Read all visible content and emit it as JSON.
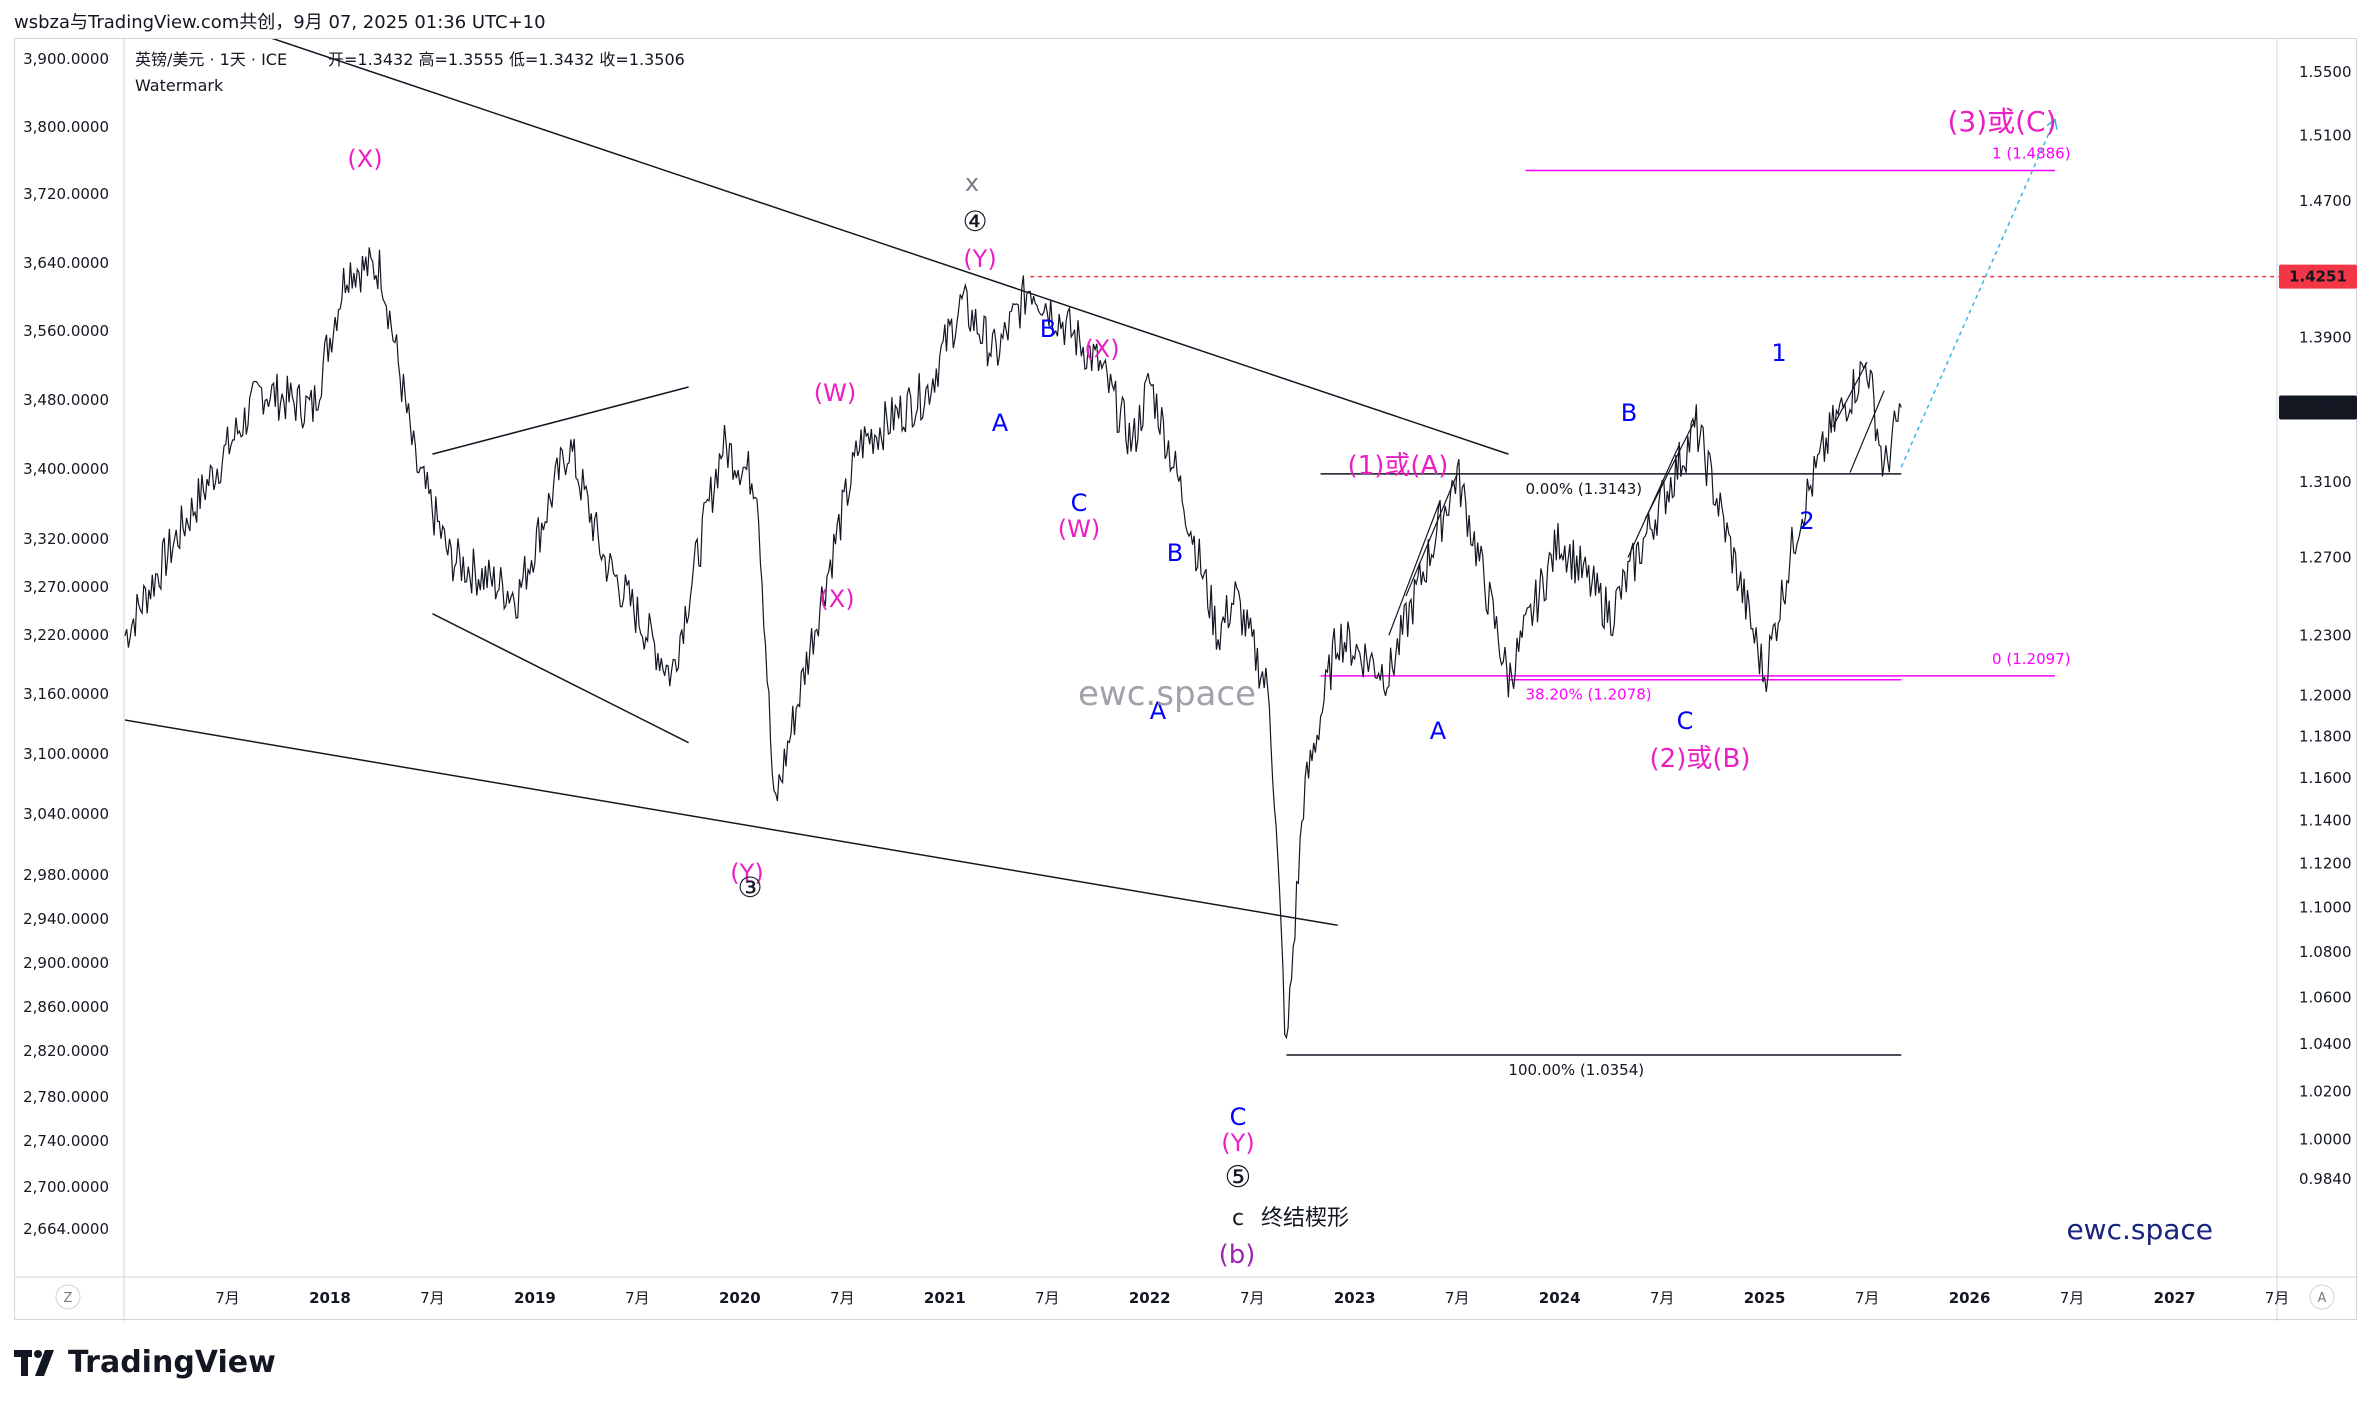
{
  "header": {
    "attribution": "wsbza与TradingView.com共创，9月 07, 2025 01:36 UTC+10"
  },
  "legend": {
    "symbol": "英镑/美元 · 1天 · ICE",
    "ohlc": "开=1.3432 高=1.3555 低=1.3432 收=1.3506",
    "watermark_label": "Watermark"
  },
  "footer": {
    "logo_text": "TradingView",
    "logo_icon": "tradingview-logo-icon",
    "z_button": "Z",
    "a_button": "A"
  },
  "chart_data": {
    "type": "line",
    "title": "",
    "series": [
      {
        "name": "英镑/美元 · 1天 · ICE",
        "color": "#131722"
      }
    ],
    "x": {
      "tick_labels": [
        "7月",
        "2018",
        "7月",
        "2019",
        "7月",
        "2020",
        "7月",
        "2021",
        "7月",
        "2022",
        "7月",
        "2023",
        "7月",
        "2024",
        "7月",
        "2025",
        "7月",
        "2026",
        "7月",
        "2027",
        "7月"
      ],
      "range": [
        "2017-01",
        "2027-12"
      ]
    },
    "left_axis": {
      "tick_labels": [
        "3,900.0000",
        "3,800.0000",
        "3,720.0000",
        "3,640.0000",
        "3,560.0000",
        "3,480.0000",
        "3,400.0000",
        "3,320.0000",
        "3,270.0000",
        "3,220.0000",
        "3,160.0000",
        "3,100.0000",
        "3,040.0000",
        "2,980.0000",
        "2,940.0000",
        "2,900.0000",
        "2,860.0000",
        "2,820.0000",
        "2,780.0000",
        "2,740.0000",
        "2,700.0000",
        "2,664.0000"
      ]
    },
    "right_axis": {
      "scale": "log",
      "range": [
        0.975,
        1.57
      ],
      "tick_labels": [
        "1.5500",
        "1.5100",
        "1.4700",
        "1.3900",
        "1.3100",
        "1.2700",
        "1.2300",
        "1.2000",
        "1.1800",
        "1.1600",
        "1.1400",
        "1.1200",
        "1.1000",
        "1.0800",
        "1.0600",
        "1.0400",
        "1.0200",
        "1.0000",
        "0.9840"
      ],
      "tick_values": [
        1.55,
        1.51,
        1.47,
        1.39,
        1.31,
        1.27,
        1.23,
        1.2,
        1.18,
        1.16,
        1.14,
        1.12,
        1.1,
        1.08,
        1.06,
        1.04,
        1.02,
        1.0,
        0.984
      ],
      "price_tags": [
        {
          "value": 1.4251,
          "label": "1.4251",
          "color": "#f23645"
        },
        {
          "value": 1.3506,
          "label": "1.3506",
          "color": "#131722"
        }
      ]
    },
    "price_path": [
      [
        "2017-01",
        1.23
      ],
      [
        "2017-04",
        1.28
      ],
      [
        "2017-09",
        1.36
      ],
      [
        "2017-12",
        1.35
      ],
      [
        "2018-02",
        1.43
      ],
      [
        "2018-04",
        1.43
      ],
      [
        "2018-06",
        1.32
      ],
      [
        "2018-08",
        1.27
      ],
      [
        "2018-12",
        1.25
      ],
      [
        "2019-03",
        1.33
      ],
      [
        "2019-05",
        1.27
      ],
      [
        "2019-09",
        1.21
      ],
      [
        "2019-12",
        1.33
      ],
      [
        "2020-02",
        1.31
      ],
      [
        "2020-03",
        1.145
      ],
      [
        "2020-05",
        1.22
      ],
      [
        "2020-08",
        1.33
      ],
      [
        "2020-12",
        1.36
      ],
      [
        "2021-02",
        1.41
      ],
      [
        "2021-04",
        1.38
      ],
      [
        "2021-06",
        1.42
      ],
      [
        "2021-10",
        1.375
      ],
      [
        "2021-12",
        1.33
      ],
      [
        "2022-01",
        1.365
      ],
      [
        "2022-03",
        1.3
      ],
      [
        "2022-05",
        1.23
      ],
      [
        "2022-06",
        1.25
      ],
      [
        "2022-08",
        1.2
      ],
      [
        "2022-09",
        1.0354
      ],
      [
        "2022-10",
        1.15
      ],
      [
        "2022-12",
        1.23
      ],
      [
        "2023-03",
        1.21
      ],
      [
        "2023-07",
        1.3143
      ],
      [
        "2023-10",
        1.2078
      ],
      [
        "2024-01",
        1.28
      ],
      [
        "2024-04",
        1.24
      ],
      [
        "2024-07",
        1.3
      ],
      [
        "2024-09",
        1.34
      ],
      [
        "2025-01",
        1.2097
      ],
      [
        "2025-03",
        1.29
      ],
      [
        "2025-05",
        1.34
      ],
      [
        "2025-07",
        1.376
      ],
      [
        "2025-08",
        1.315
      ],
      [
        "2025-09",
        1.3506
      ]
    ],
    "trendlines": [
      {
        "from": [
          "2017-06",
          1.585
        ],
        "to": [
          "2023-10",
          1.325
        ],
        "color": "#131722"
      },
      {
        "from": [
          "2017-01",
          1.188
        ],
        "to": [
          "2022-12",
          1.092
        ],
        "color": "#131722"
      },
      {
        "from": [
          "2018-07",
          1.325
        ],
        "to": [
          "2019-10",
          1.362
        ],
        "color": "#131722"
      },
      {
        "from": [
          "2018-07",
          1.241
        ],
        "to": [
          "2019-10",
          1.177
        ],
        "color": "#131722"
      }
    ],
    "levels": [
      {
        "value": 1.4886,
        "label": "1 (1.4886)",
        "color": "#ff00ff",
        "from": "2023-11",
        "to": "2026-06"
      },
      {
        "value": 1.2097,
        "label": "0 (1.2097)",
        "color": "#ff00ff",
        "from": "2022-11",
        "to": "2026-06"
      },
      {
        "value": 1.3143,
        "label": "0.00% (1.3143)",
        "color": "#131722",
        "from": "2022-11",
        "to": "2025-09"
      },
      {
        "value": 1.2078,
        "label": "38.20% (1.2078)",
        "color": "#ff00ff",
        "from": "2023-10",
        "to": "2025-09"
      },
      {
        "value": 1.0354,
        "label": "100.00% (1.0354)",
        "color": "#131722",
        "from": "2022-09",
        "to": "2025-09"
      },
      {
        "value": 1.4251,
        "label": "",
        "color": "#f23645",
        "from": "2021-06",
        "to": "2027-12",
        "dashed": true
      }
    ],
    "projection": {
      "from": [
        "2025-09",
        1.318
      ],
      "to": [
        "2026-06",
        1.52
      ],
      "color": "#33b5e5"
    },
    "wave_labels": [
      {
        "text": "(X)",
        "color": "#e91ec3"
      },
      {
        "text": "(W)",
        "color": "#e91ec3"
      },
      {
        "text": "(X)",
        "color": "#e91ec3"
      },
      {
        "text": "(Y)",
        "color": "#e91ec3"
      },
      {
        "text": "③",
        "color": "#131722"
      },
      {
        "text": "x",
        "color": "#787b86"
      },
      {
        "text": "④",
        "color": "#131722"
      },
      {
        "text": "(Y)",
        "color": "#e91ec3"
      },
      {
        "text": "A",
        "color": "#0000ff"
      },
      {
        "text": "B",
        "color": "#0000ff"
      },
      {
        "text": "(X)",
        "color": "#e91ec3"
      },
      {
        "text": "C",
        "color": "#0000ff"
      },
      {
        "text": "(W)",
        "color": "#e91ec3"
      },
      {
        "text": "B",
        "color": "#0000ff"
      },
      {
        "text": "A",
        "color": "#0000ff"
      },
      {
        "text": "C",
        "color": "#0000ff"
      },
      {
        "text": "(Y)",
        "color": "#e91ec3"
      },
      {
        "text": "⑤",
        "color": "#131722"
      },
      {
        "text": "c",
        "color": "#131722"
      },
      {
        "text": "终结楔形",
        "color": "#131722"
      },
      {
        "text": "(b)",
        "color": "#9c27b0"
      },
      {
        "text": "(1)或(A)",
        "color": "#e91ec3"
      },
      {
        "text": "A",
        "color": "#0000ff"
      },
      {
        "text": "B",
        "color": "#0000ff"
      },
      {
        "text": "C",
        "color": "#0000ff"
      },
      {
        "text": "(2)或(B)",
        "color": "#e91ec3"
      },
      {
        "text": "1",
        "color": "#0000ff"
      },
      {
        "text": "2",
        "color": "#0000ff"
      },
      {
        "text": "(3)或(C)",
        "color": "#e91ec3"
      }
    ],
    "watermarks": [
      {
        "text": "ewc.space",
        "color": "#9598a1"
      },
      {
        "text": "ewc.space",
        "color": "#1a237e"
      }
    ],
    "grid": false
  }
}
